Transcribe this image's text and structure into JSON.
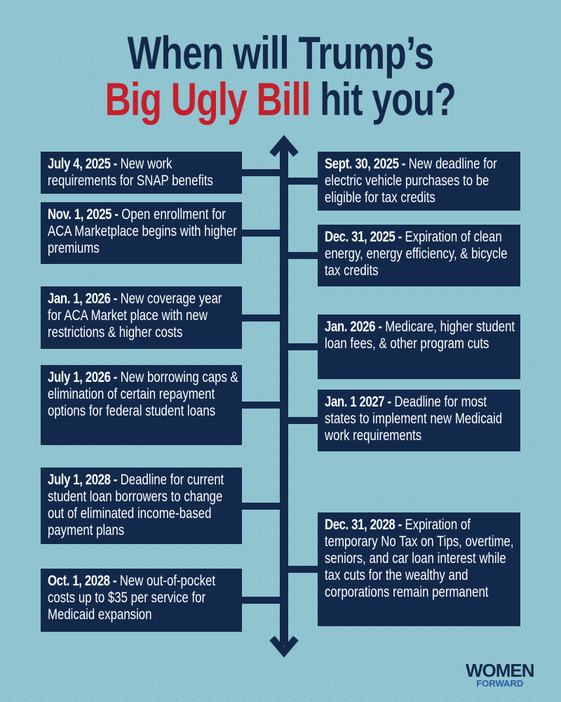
{
  "title": {
    "line1": "When will Trump’s",
    "line2_highlight": "Big Ugly Bill",
    "line2_rest": " hit you?"
  },
  "colors": {
    "navy": "#13294b",
    "red": "#c5202b",
    "background": "#8fc4d0"
  },
  "left_events": [
    {
      "date": "July 4, 2025 -",
      "text": " New work requirements for SNAP benefits"
    },
    {
      "date": "Nov. 1, 2025 -",
      "text": " Open enrollment for ACA Marketplace begins with higher premiums"
    },
    {
      "date": "Jan. 1, 2026 -",
      "text": " New coverage year for ACA Market place with new restrictions & higher costs"
    },
    {
      "date": "July 1,  2026 -",
      "text": " New borrowing caps & elimination of certain repayment options for federal student loans"
    },
    {
      "date": "July 1, 2028 -",
      "text": " Deadline for current student loan borrowers to change out of eliminated income-based payment plans"
    },
    {
      "date": "Oct. 1, 2028 -",
      "text": " New out-of-pocket costs up to $35 per service for Medicaid expansion"
    }
  ],
  "right_events": [
    {
      "date": "Sept. 30, 2025 -",
      "text": " New deadline for electric vehicle purchases to be eligible for tax credits"
    },
    {
      "date": "Dec. 31, 2025 -",
      "text": " Expiration of clean energy, energy efficiency, & bicycle tax credits"
    },
    {
      "date": "Jan.  2026 -",
      "text": " Medicare, higher student loan fees, & other program cuts"
    },
    {
      "date": "Jan. 1 2027 -",
      "text": " Deadline for most states to implement new Medicaid work requirements"
    },
    {
      "date": "Dec. 31, 2028 -",
      "text": " Expiration of temporary No Tax on Tips, overtime, seniors, and car loan interest while tax cuts for the wealthy and corporations remain permanent"
    }
  ],
  "logo": {
    "line1": "WOMEN",
    "line2": "FORWARD"
  }
}
